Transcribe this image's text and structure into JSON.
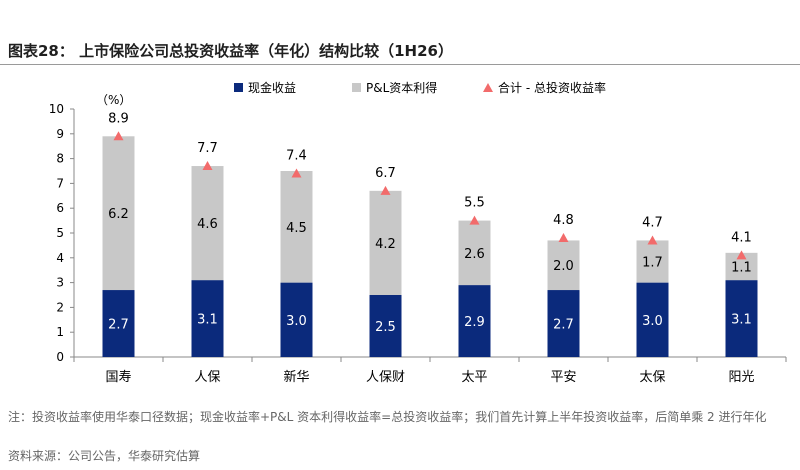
{
  "header": {
    "title": "图表28：  上市保险公司总投资收益率（年化）结构比较（1H26）"
  },
  "chart_data": {
    "type": "bar",
    "stacked": true,
    "categories": [
      "国寿",
      "人保",
      "新华",
      "人保财",
      "太平",
      "平安",
      "太保",
      "阳光"
    ],
    "series": [
      {
        "name": "现金收益",
        "values": [
          2.7,
          3.1,
          3.0,
          2.5,
          2.9,
          2.7,
          3.0,
          3.1
        ],
        "color": "#0b2a7c"
      },
      {
        "name": "P&L资本利得",
        "values": [
          6.2,
          4.6,
          4.5,
          4.2,
          2.6,
          2.0,
          1.7,
          1.1
        ],
        "color": "#c8c8c8"
      }
    ],
    "total": {
      "name": "合计 - 总投资收益率",
      "values": [
        8.9,
        7.7,
        7.4,
        6.7,
        5.5,
        4.8,
        4.7,
        4.1
      ],
      "color": "#f26b6b",
      "marker": "triangle"
    },
    "ylabel": "（%）",
    "ylim": [
      0,
      10
    ],
    "yticks": [
      "0",
      "1",
      "2",
      "3",
      "4",
      "5",
      "6",
      "7",
      "8",
      "9",
      "10"
    ],
    "grid": false,
    "legend_position": "top-center"
  },
  "footer": {
    "note": "注：投资收益率使用华泰口径数据；现金收益率+P&L 资本利得收益率=总投资收益率；我们首先计算上半年投资收益率，后简单乘 2 进行年化",
    "source": "资料来源：公司公告，华泰研究估算"
  }
}
